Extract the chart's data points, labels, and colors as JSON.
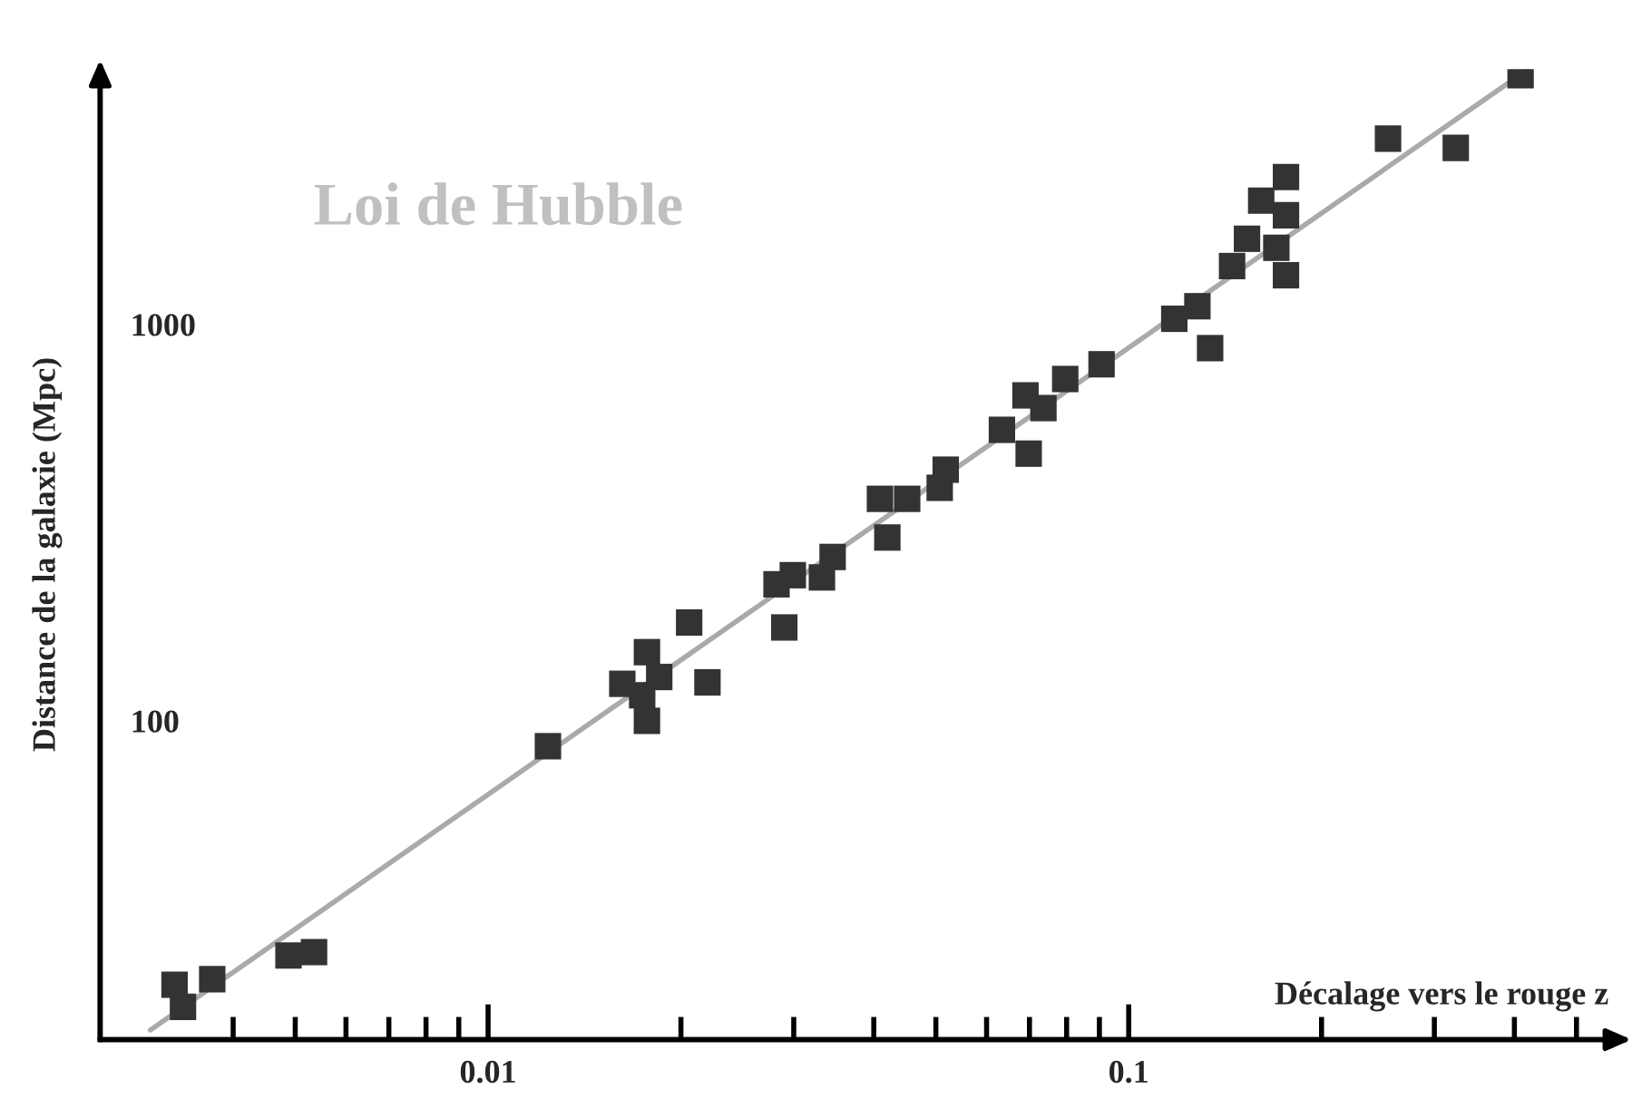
{
  "chart_data": {
    "type": "scatter",
    "xlabel": "Décalage vers le rouge z",
    "ylabel": "Distance de la galaxie (Mpc)",
    "annotations": [
      "Loi de Hubble"
    ],
    "log": "xy",
    "grid": false,
    "xlim": [
      0.00248,
      0.593
    ],
    "ylim": [
      15.7,
      4400
    ],
    "xticks": [
      {
        "value": 0.004,
        "label": null
      },
      {
        "value": 0.005,
        "label": null
      },
      {
        "value": 0.006,
        "label": null
      },
      {
        "value": 0.007,
        "label": null
      },
      {
        "value": 0.008,
        "label": null
      },
      {
        "value": 0.009,
        "label": null
      },
      0.01,
      {
        "value": 0.02,
        "label": null
      },
      {
        "value": 0.03,
        "label": null
      },
      {
        "value": 0.04,
        "label": null
      },
      {
        "value": 0.05,
        "label": null
      },
      {
        "value": 0.06,
        "label": null
      },
      {
        "value": 0.07,
        "label": null
      },
      {
        "value": 0.08,
        "label": null
      },
      {
        "value": 0.09,
        "label": null
      },
      0.1,
      {
        "value": 0.2,
        "label": null
      },
      {
        "value": 0.3,
        "label": null
      },
      {
        "value": 0.4,
        "label": null
      },
      {
        "value": 0.5,
        "label": null
      }
    ],
    "yticks": [
      100,
      1000
    ],
    "series": [
      {
        "type": "line",
        "color": "#aaaaaa",
        "line_style": "solid",
        "x": [
          0.00297,
          0.42
        ],
        "values": [
          16.6,
          4400
        ]
      },
      {
        "color": "#333333",
        "marker": "square",
        "x": [
          0.00324,
          0.00334,
          0.00371,
          0.00488,
          0.00535,
          0.0124,
          0.0162,
          0.0174,
          0.0177,
          0.0177,
          0.0185,
          0.0206,
          0.022,
          0.029,
          0.0282,
          0.0299,
          0.0332,
          0.0345,
          0.042,
          0.0409,
          0.0451,
          0.0507,
          0.0518,
          0.0634,
          0.0698,
          0.069,
          0.0736,
          0.0796,
          0.0907,
          0.1178,
          0.128,
          0.134,
          0.145,
          0.153,
          0.17,
          0.176,
          0.176,
          0.161,
          0.176,
          0.254,
          0.324,
          0.409
        ],
        "values": [
          21.6,
          19.0,
          22.3,
          25.6,
          26.1,
          86.3,
          124,
          116,
          100,
          149,
          129,
          177,
          125,
          172,
          221,
          233,
          230,
          259,
          290,
          363,
          363,
          387,
          430,
          542,
          472,
          662,
          615,
          728,
          793,
          1033,
          1111,
          871,
          1403,
          1644,
          1560,
          1330,
          1884,
          2051,
          2353,
          2940,
          2786,
          4250
        ]
      }
    ]
  }
}
